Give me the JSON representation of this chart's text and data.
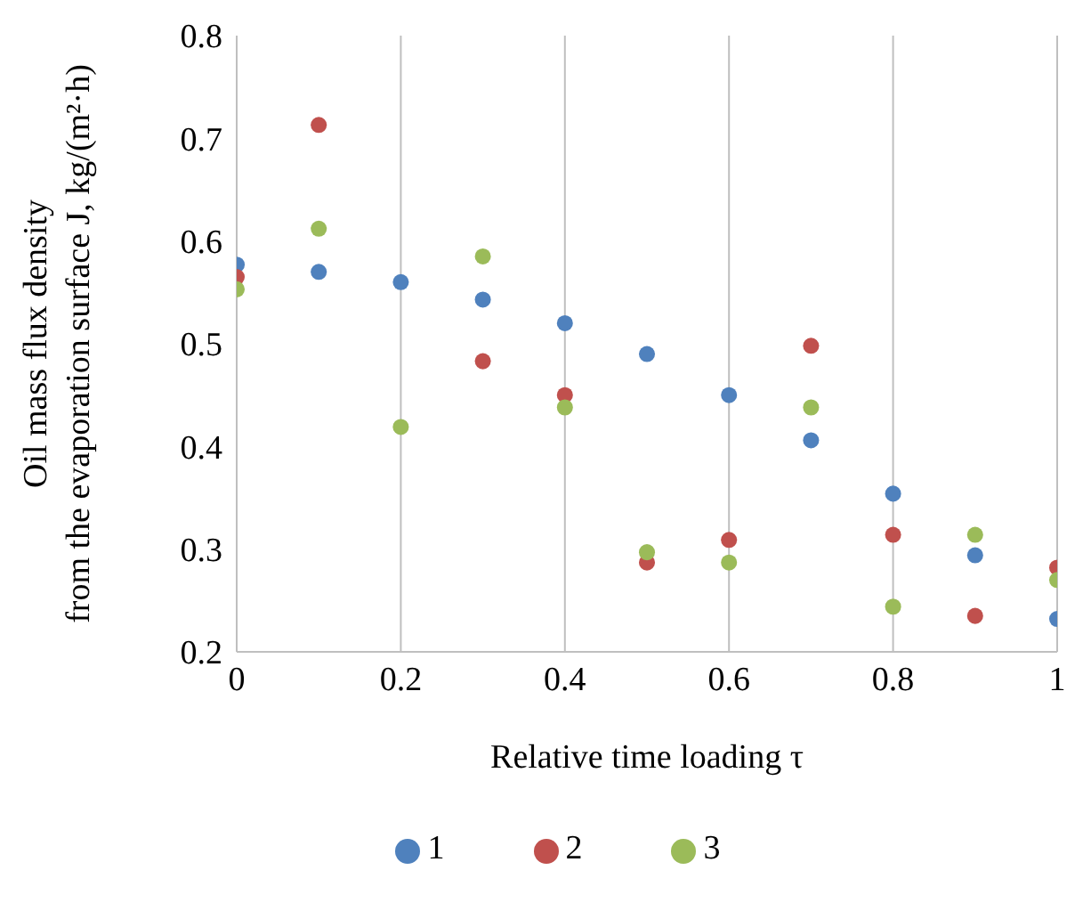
{
  "chart_data": {
    "type": "scatter",
    "xlabel": "Relative time loading τ",
    "ylabel": "Oil mass flux density from the evaporation surface J, kg/(m²·h)",
    "x": [
      0,
      0.1,
      0.2,
      0.3,
      0.4,
      0.5,
      0.6,
      0.7,
      0.8,
      0.9,
      1
    ],
    "series": [
      {
        "name": "1",
        "color": "#4f81bd",
        "values": [
          0.577,
          0.57,
          0.56,
          0.543,
          0.52,
          0.49,
          0.45,
          0.406,
          0.354,
          0.294,
          0.232
        ]
      },
      {
        "name": "2",
        "color": "#c0504d",
        "values": [
          0.565,
          0.713,
          null,
          0.483,
          0.45,
          0.287,
          0.309,
          0.498,
          0.314,
          0.235,
          0.282
        ]
      },
      {
        "name": "3",
        "color": "#9bbb59",
        "values": [
          0.553,
          0.612,
          0.419,
          0.585,
          0.438,
          0.297,
          0.287,
          0.438,
          0.244,
          0.314,
          0.27
        ]
      }
    ],
    "xlim": [
      0,
      1
    ],
    "xticks": [
      0,
      0.2,
      0.4,
      0.6,
      0.8,
      1
    ],
    "ylim": [
      0.2,
      0.8
    ],
    "yticks": [
      0.2,
      0.3,
      0.4,
      0.5,
      0.6,
      0.7,
      0.8
    ],
    "grid": "x",
    "legend": "bottom",
    "marker": "circle"
  }
}
